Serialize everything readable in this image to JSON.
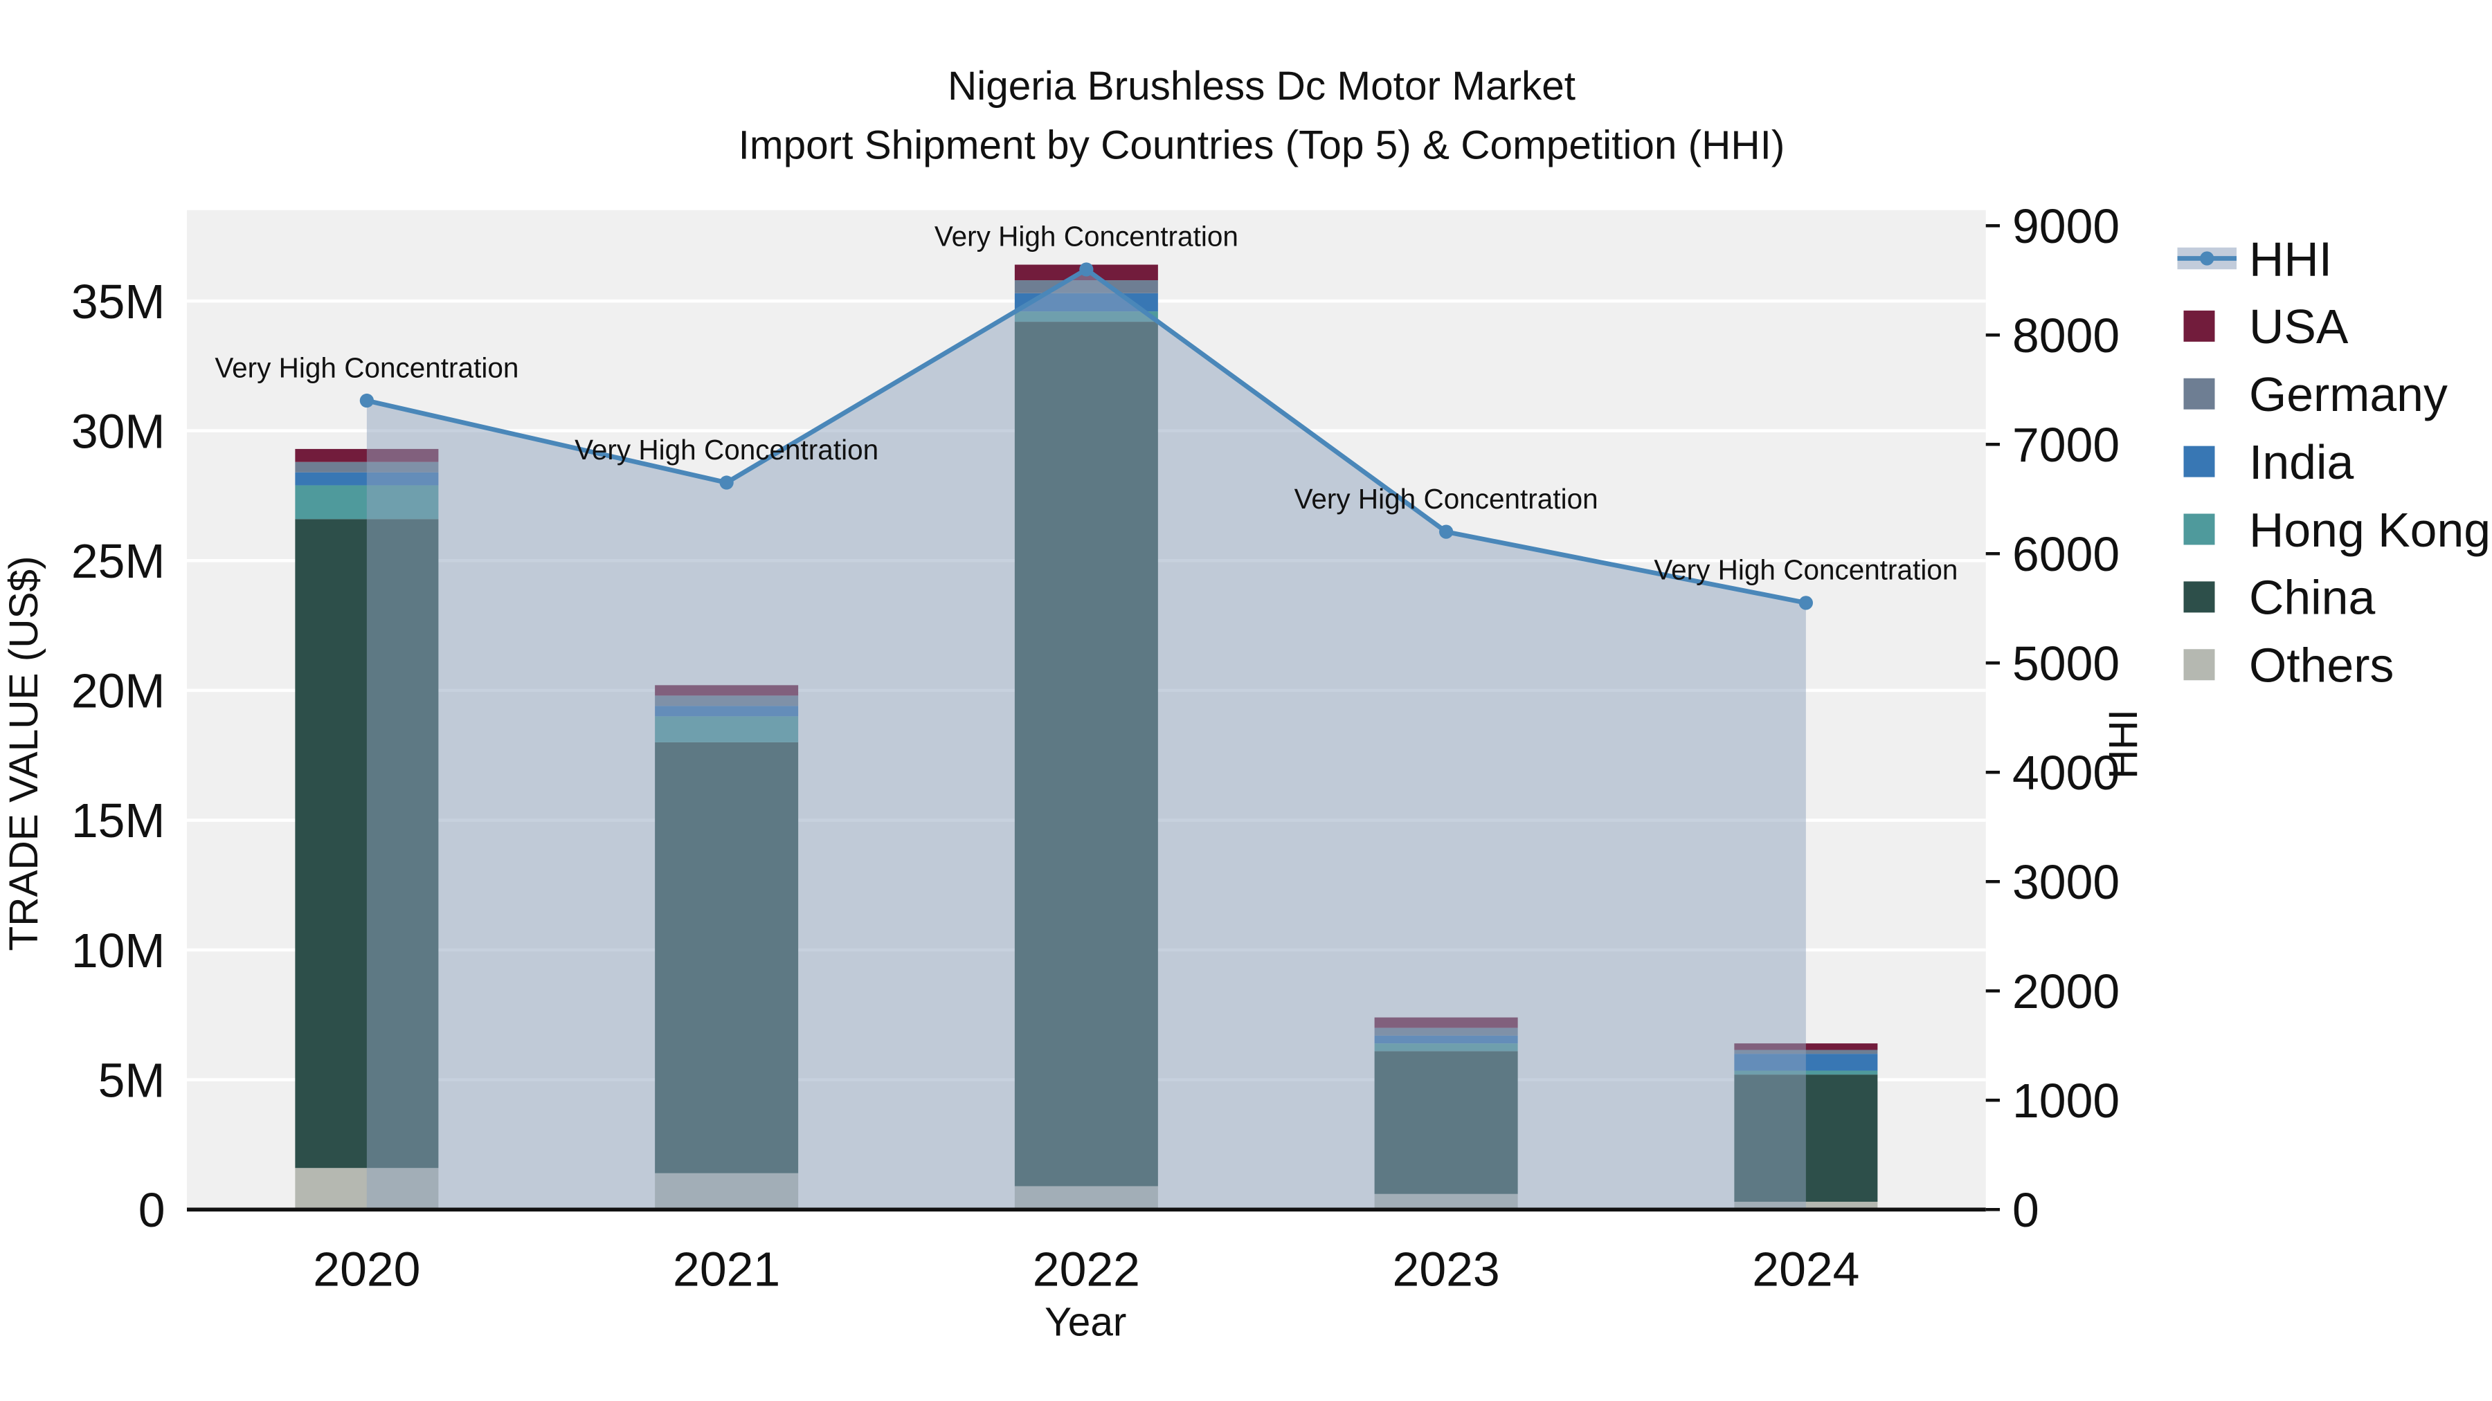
{
  "chart_data": {
    "type": "bar+line",
    "title": "Nigeria Brushless Dc Motor Market",
    "subtitle": "Import Shipment by Countries (Top 5) & Competition (HHI)",
    "xlabel": "Year",
    "ylabel_left": "TRADE VALUE (US$)",
    "ylabel_right": "HHI",
    "categories": [
      "2020",
      "2021",
      "2022",
      "2023",
      "2024"
    ],
    "bar_unit": "US$ millions",
    "stack_order_bottom_to_top": [
      "Others",
      "China",
      "Hong Kong",
      "India",
      "Germany",
      "USA"
    ],
    "series": [
      {
        "name": "Others",
        "color": "#b5b8b1",
        "values": [
          1.6,
          1.4,
          0.9,
          0.6,
          0.3
        ]
      },
      {
        "name": "China",
        "color": "#2d4f4a",
        "values": [
          25.0,
          16.6,
          33.3,
          5.5,
          4.9
        ]
      },
      {
        "name": "Hong Kong",
        "color": "#4f9a9c",
        "values": [
          1.3,
          1.0,
          0.4,
          0.3,
          0.15
        ]
      },
      {
        "name": "India",
        "color": "#3877b4",
        "values": [
          0.5,
          0.4,
          0.7,
          0.3,
          0.65
        ]
      },
      {
        "name": "Germany",
        "color": "#6e7e93",
        "values": [
          0.4,
          0.4,
          0.5,
          0.3,
          0.15
        ]
      },
      {
        "name": "USA",
        "color": "#721c3c",
        "values": [
          0.5,
          0.4,
          0.6,
          0.4,
          0.25
        ]
      }
    ],
    "line": {
      "name": "HHI",
      "color": "#4a87b9",
      "area_color": "#8fa3bd",
      "values": [
        7400,
        6650,
        8600,
        6200,
        5550
      ],
      "annotations": [
        "Very High Concentration",
        "Very High Concentration",
        "Very High Concentration",
        "Very High Concentration",
        "Very High Concentration"
      ]
    },
    "y_left": {
      "ticks": [
        "0",
        "5M",
        "10M",
        "15M",
        "20M",
        "25M",
        "30M",
        "35M"
      ],
      "tick_values": [
        0,
        5,
        10,
        15,
        20,
        25,
        30,
        35
      ],
      "range": [
        0,
        38.5
      ]
    },
    "y_right": {
      "ticks": [
        "0",
        "1000",
        "2000",
        "3000",
        "4000",
        "5000",
        "6000",
        "7000",
        "8000",
        "9000"
      ],
      "tick_values": [
        0,
        1000,
        2000,
        3000,
        4000,
        5000,
        6000,
        7000,
        8000,
        9000
      ],
      "range": [
        0,
        9000
      ]
    },
    "legend": [
      {
        "label": "HHI",
        "color": "#4a87b9",
        "type": "line"
      },
      {
        "label": "USA",
        "color": "#721c3c",
        "type": "square"
      },
      {
        "label": "Germany",
        "color": "#6e7e93",
        "type": "square"
      },
      {
        "label": "India",
        "color": "#3877b4",
        "type": "square"
      },
      {
        "label": "Hong Kong",
        "color": "#4f9a9c",
        "type": "square"
      },
      {
        "label": "China",
        "color": "#2d4f4a",
        "type": "square"
      },
      {
        "label": "Others",
        "color": "#b5b8b1",
        "type": "square"
      }
    ],
    "plot_background": "#f0f0f0",
    "gridline_color": "#ffffff"
  }
}
